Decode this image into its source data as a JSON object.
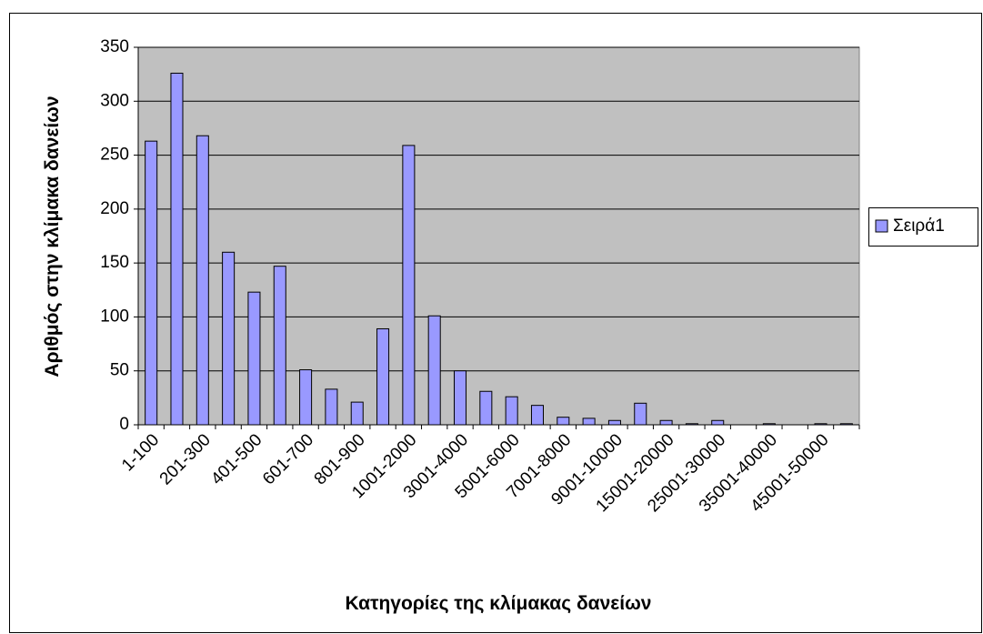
{
  "chart_data": {
    "type": "bar",
    "x_label": "Κατηγορίες της κλίμακας δανείων",
    "y_label": "Αριθμός στην κλίμακα δανείων",
    "categories": [
      "1-100",
      null,
      "201-300",
      null,
      "401-500",
      null,
      "601-700",
      null,
      "801-900",
      null,
      "1001-2000",
      null,
      "3001-4000",
      null,
      "5001-6000",
      null,
      "7001-8000",
      null,
      "9001-10000",
      null,
      "15001-20000",
      null,
      "25001-30000",
      null,
      "35001-40000",
      null,
      "45001-50000",
      null
    ],
    "series": [
      {
        "name": "Σειρά1",
        "color": "#9999ff",
        "values": [
          263,
          326,
          268,
          160,
          123,
          147,
          51,
          33,
          21,
          89,
          259,
          101,
          50,
          31,
          26,
          18,
          7,
          6,
          4,
          20,
          4,
          1,
          4,
          0,
          1,
          0,
          1,
          1
        ]
      }
    ],
    "ylim": [
      0,
      350
    ],
    "yticks": [
      0,
      50,
      100,
      150,
      200,
      250,
      300,
      350
    ],
    "grid": true,
    "legend": "right"
  }
}
